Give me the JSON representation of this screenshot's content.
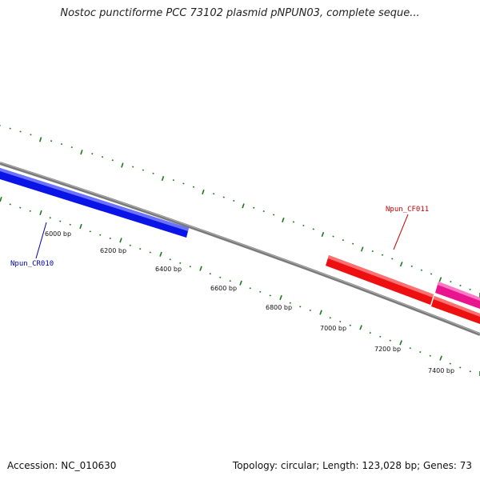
{
  "title": "Nostoc punctiforme PCC 73102 plasmid pNPUN03, complete seque...",
  "footer": {
    "accession": "Accession: NC_010630",
    "summary": "Topology: circular; Length: 123,028 bp; Genes: 73"
  },
  "scale": {
    "labels": [
      "6000 bp",
      "6200 bp",
      "6400 bp",
      "6600 bp",
      "6800 bp",
      "7000 bp",
      "7200 bp",
      "7400 bp"
    ]
  },
  "genes": [
    {
      "name": "Npun_CR010",
      "strand": "reverse",
      "color": "#0a14e6"
    },
    {
      "name": "Npun_CF011",
      "strand": "forward",
      "color": "#ee1010"
    },
    {
      "name": "",
      "strand": "forward",
      "color": "#ee1010"
    },
    {
      "name": "",
      "strand": "forward",
      "color": "#e8158f"
    }
  ],
  "colors": {
    "backbone": "#888888",
    "ticks": "#1a7a1a",
    "label_blue": "#0000aa",
    "label_red": "#cc0000"
  }
}
